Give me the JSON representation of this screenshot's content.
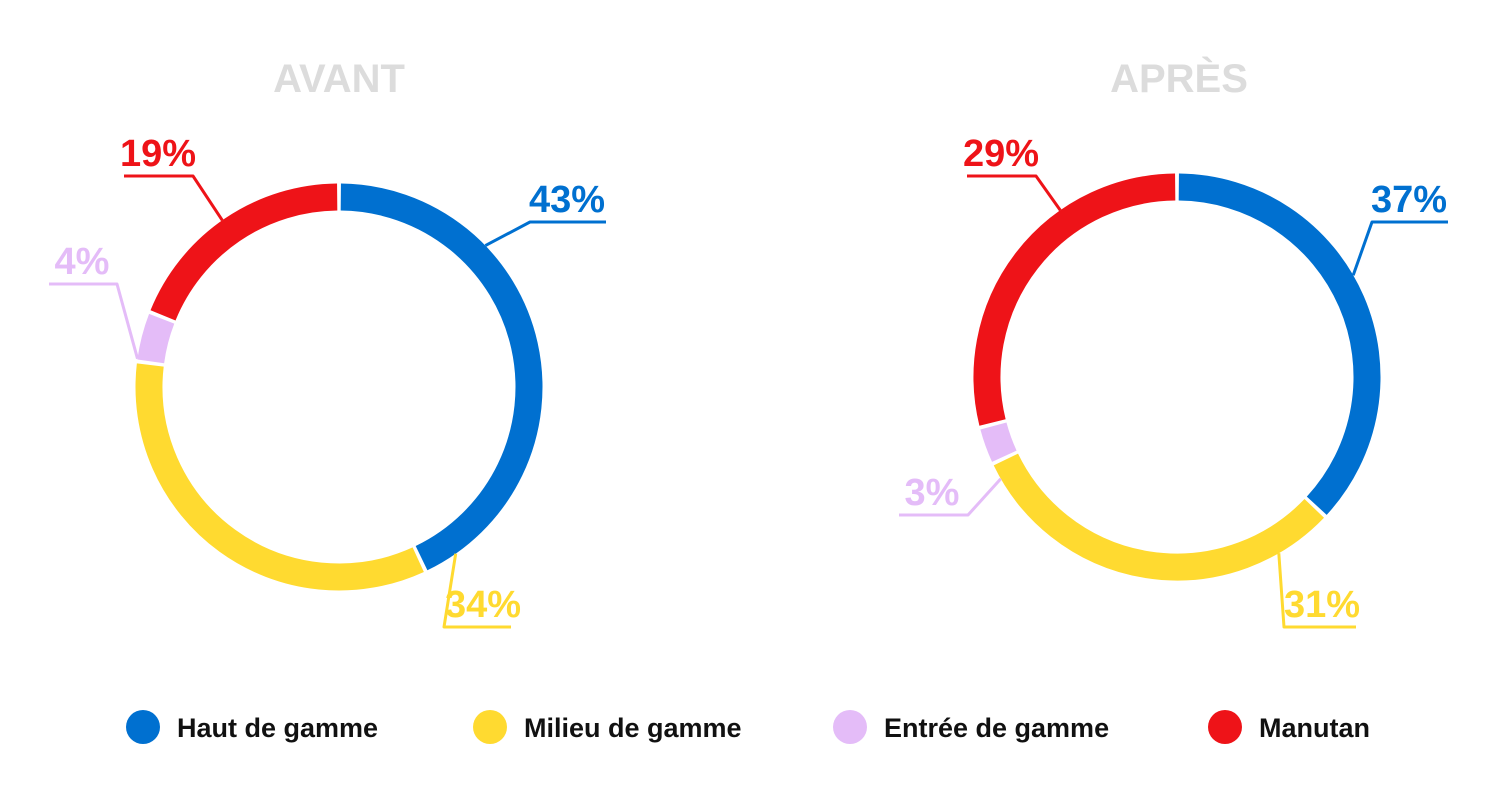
{
  "chart_data": [
    {
      "type": "pie",
      "variant": "donut",
      "title": "AVANT",
      "categories": [
        "Haut de gamme",
        "Milieu de gamme",
        "Entrée de gamme",
        "Manutan"
      ],
      "values": [
        43,
        34,
        4,
        19
      ],
      "value_labels": [
        "43%",
        "34%",
        "4%",
        "19%"
      ]
    },
    {
      "type": "pie",
      "variant": "donut",
      "title": "APRÈS",
      "categories": [
        "Haut de gamme",
        "Milieu de gamme",
        "Entrée de gamme",
        "Manutan"
      ],
      "values": [
        37,
        31,
        3,
        29
      ],
      "value_labels": [
        "37%",
        "31%",
        "3%",
        "29%"
      ]
    }
  ],
  "legend": {
    "placement": "bottom",
    "items": [
      {
        "label": "Haut de gamme",
        "color": "#0070D0"
      },
      {
        "label": "Milieu de gamme",
        "color": "#FFDA30"
      },
      {
        "label": "Entrée de gamme",
        "color": "#E4BCF8"
      },
      {
        "label": "Manutan",
        "color": "#EE1318"
      }
    ]
  },
  "colors": {
    "title": "#DCDCDC",
    "background": "#FFFFFF",
    "segments": [
      "#0070D0",
      "#FFDA30",
      "#E4BCF8",
      "#EE1318"
    ]
  }
}
